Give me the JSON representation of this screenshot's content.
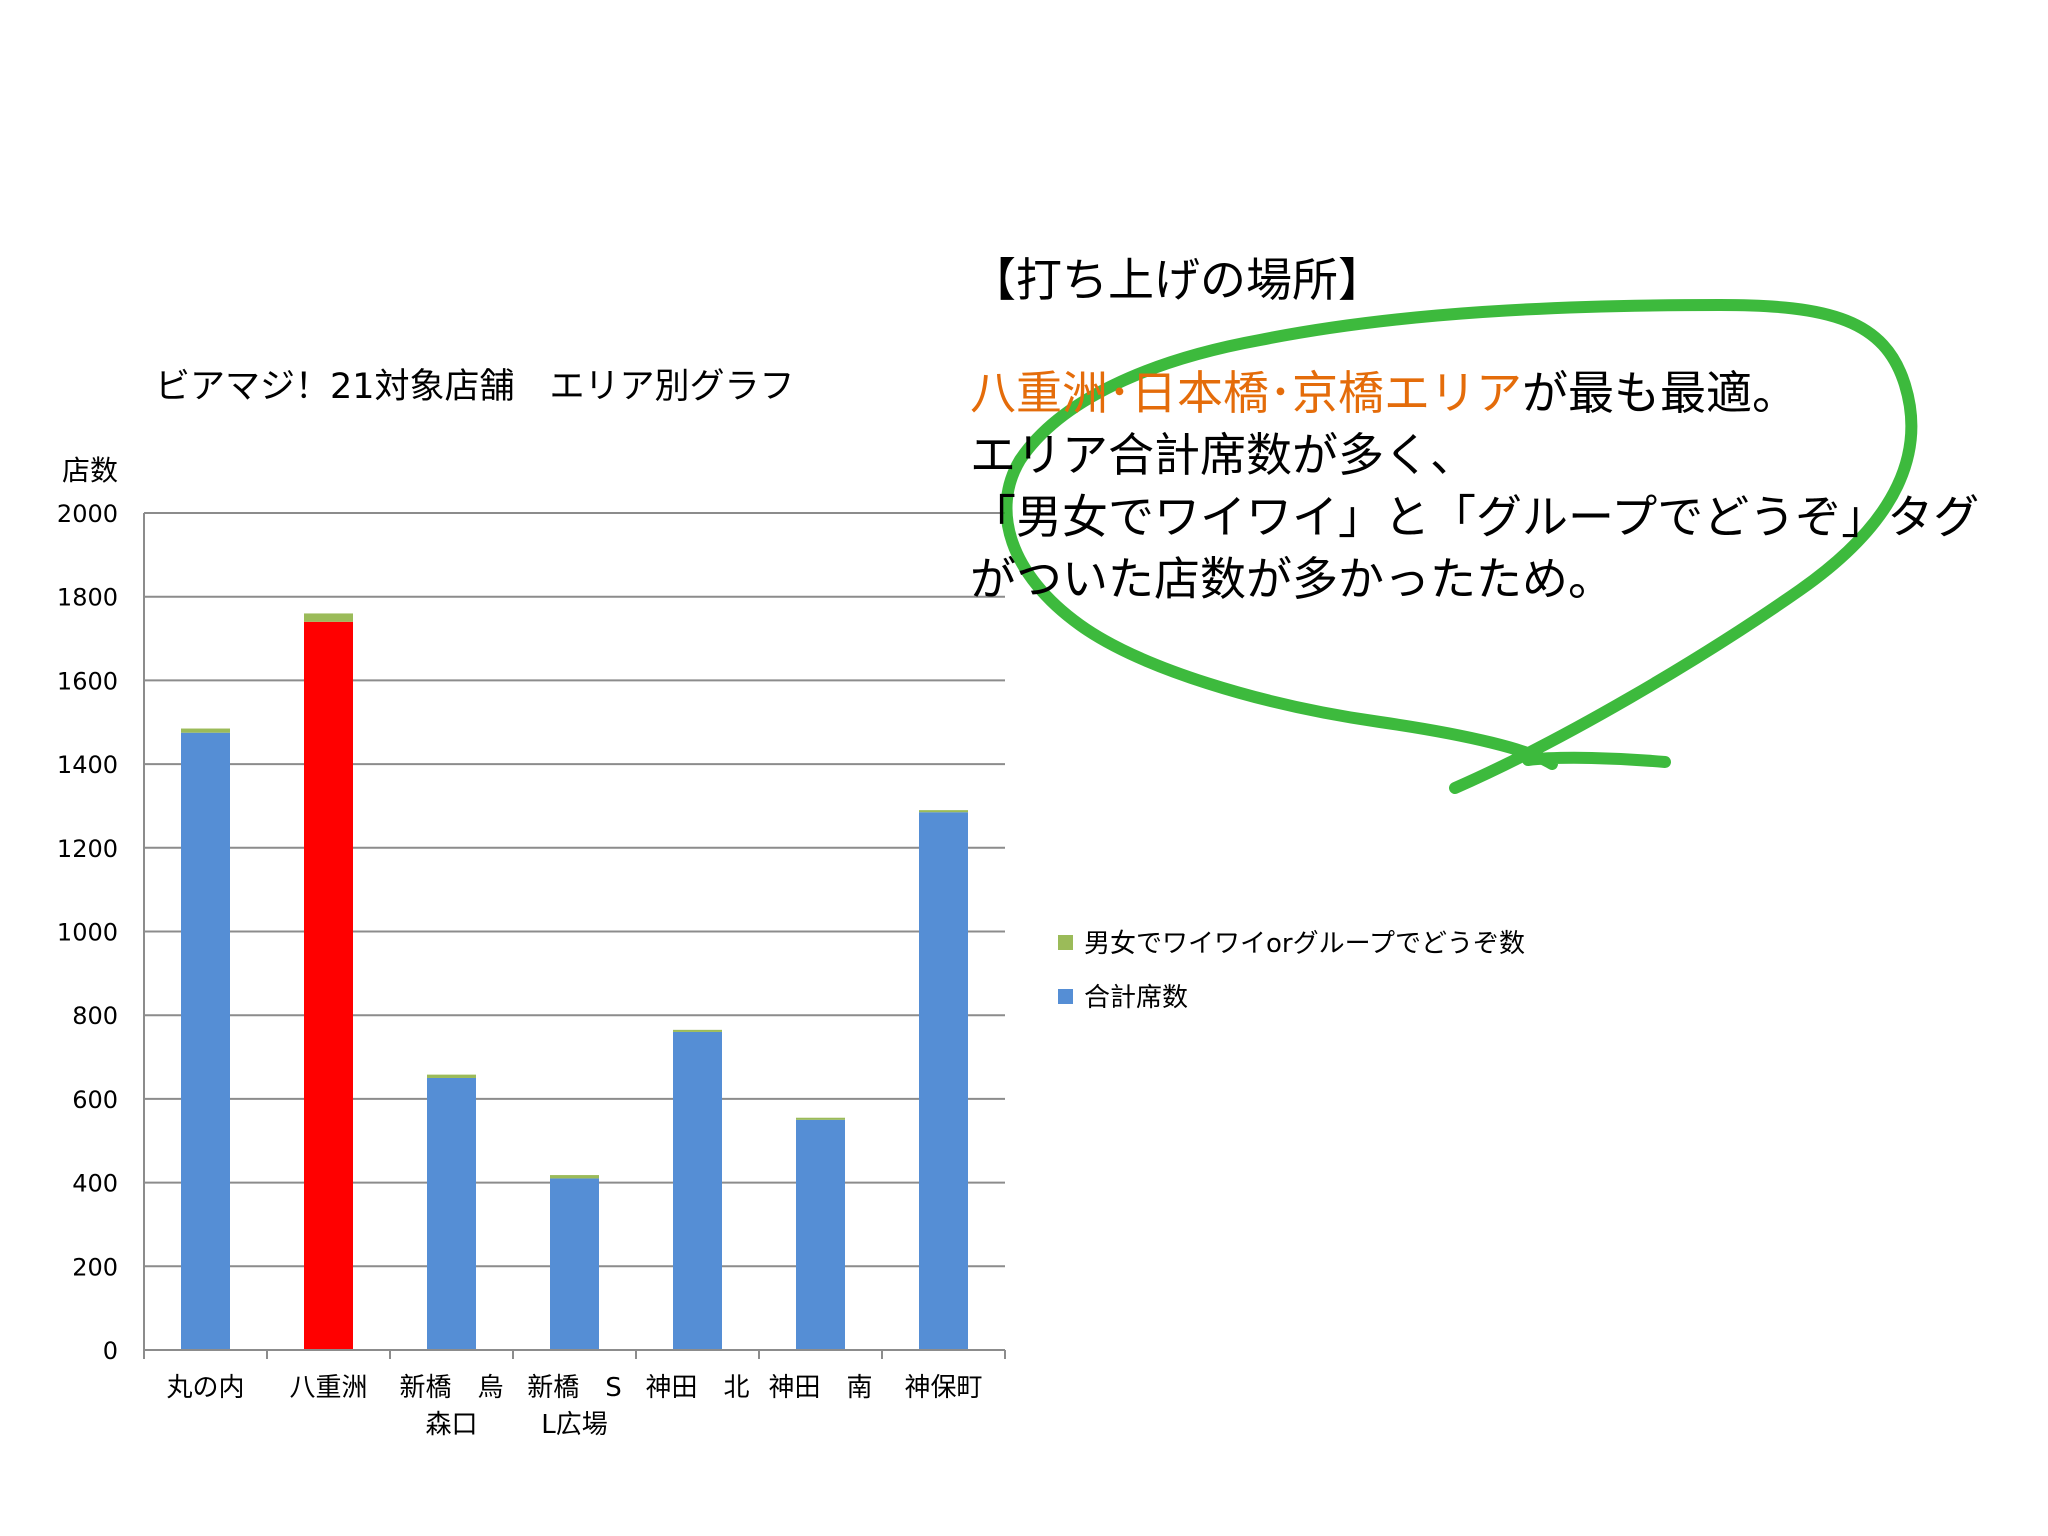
{
  "chart_data": {
    "type": "bar",
    "stacked": true,
    "title": "ビアマジ！21対象店舗　エリア別グラフ",
    "ylabel": "店数",
    "xlabel": "",
    "ylim": [
      0,
      2000
    ],
    "yticks": [
      0,
      200,
      400,
      600,
      800,
      1000,
      1200,
      1400,
      1600,
      1800,
      2000
    ],
    "grid": true,
    "legend_position": "right",
    "categories": [
      [
        "丸の内"
      ],
      [
        "八重洲"
      ],
      [
        "新橋　烏",
        "森口"
      ],
      [
        "新橋　S",
        "L広場"
      ],
      [
        "神田　北"
      ],
      [
        "神田　南"
      ],
      [
        "神保町"
      ]
    ],
    "series": [
      {
        "name": "合計席数",
        "color": "#558ed5",
        "values": [
          1475,
          1740,
          650,
          410,
          760,
          550,
          1285
        ]
      },
      {
        "name": "男女でワイワイorグループでどうぞ数",
        "color": "#9bbb59",
        "values": [
          10,
          20,
          8,
          8,
          5,
          5,
          5
        ]
      }
    ],
    "highlight": {
      "category_index": 1,
      "color": "#ff0000"
    },
    "legend_order": [
      "男女でワイワイorグループでどうぞ数",
      "合計席数"
    ]
  },
  "note": {
    "heading": "【打ち上げの場所】",
    "line1_accent": "八重洲･日本橋･京橋エリア",
    "line1_rest": "が最も最適。",
    "line2": "エリア合計席数が多く、",
    "line3": "「男女でワイワイ」と「グループでどうぞ」タグ",
    "line4": "がついた店数が多かったため。",
    "accent_color": "#e46c0a"
  },
  "annotation": {
    "color": "#22b022",
    "shape": "hand-drawn-circle"
  }
}
